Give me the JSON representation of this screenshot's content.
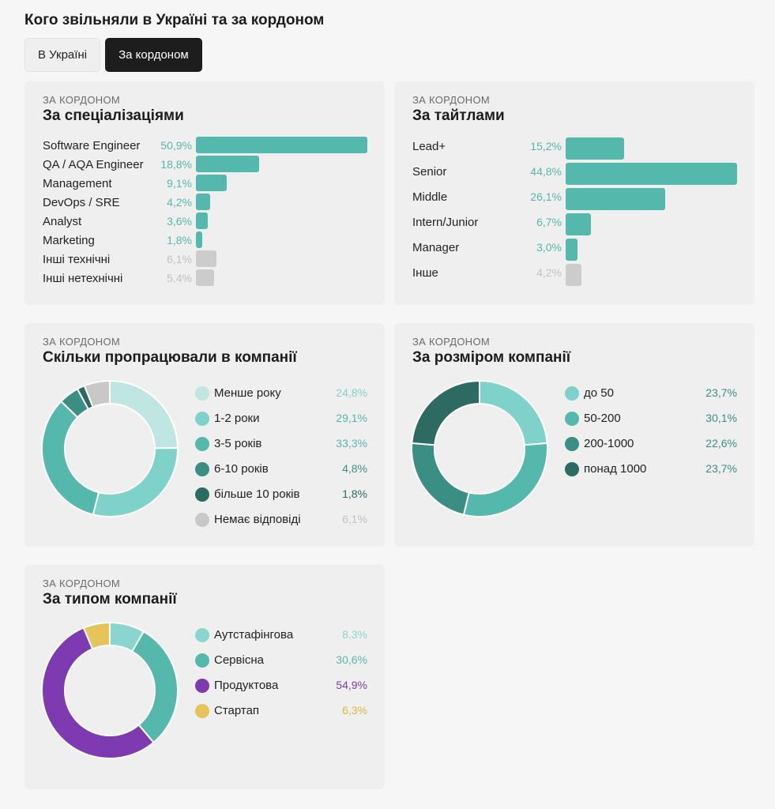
{
  "page": {
    "title": "Кого звільняли в Україні та за кордоном"
  },
  "tabs": [
    {
      "label": "В Україні",
      "active": false
    },
    {
      "label": "За кордоном",
      "active": true
    }
  ],
  "colors": {
    "teal": "#54b8ad",
    "gray": "#cccccc",
    "gray_text": "#c2c2c2",
    "exp": [
      "#bfe6e3",
      "#7fd2ca",
      "#54b8ad",
      "#3b8e84",
      "#2d6a62",
      "#c8c8c8"
    ],
    "size": [
      "#7fd2ca",
      "#54b8ad",
      "#3b8e84",
      "#2d6a62"
    ],
    "type": [
      "#8ad6cf",
      "#54b8ad",
      "#7e3bb1",
      "#e6c45a"
    ]
  },
  "chart_data": [
    {
      "type": "bar",
      "kicker": "ЗА КОРДОНОМ",
      "title": "За спеціалізаціями",
      "categories": [
        "Software Engineer",
        "QA / AQA Engineer",
        "Management",
        "DevOps / SRE",
        "Analyst",
        "Marketing",
        "Інші технічні",
        "Інші нетехнічні"
      ],
      "values": [
        50.9,
        18.8,
        9.1,
        4.2,
        3.6,
        1.8,
        6.1,
        5.4
      ],
      "labels": [
        "50,9%",
        "18,8%",
        "9,1%",
        "4,2%",
        "3,6%",
        "1,8%",
        "6,1%",
        "5,4%"
      ],
      "muted": [
        false,
        false,
        false,
        false,
        false,
        false,
        true,
        true
      ]
    },
    {
      "type": "bar",
      "kicker": "ЗА КОРДОНОМ",
      "title": "За тайтлами",
      "categories": [
        "Lead+",
        "Senior",
        "Middle",
        "Intern/Junior",
        "Manager",
        "Інше"
      ],
      "values": [
        15.2,
        44.8,
        26.1,
        6.7,
        3.0,
        4.2
      ],
      "labels": [
        "15,2%",
        "44,8%",
        "26,1%",
        "6,7%",
        "3,0%",
        "4,2%"
      ],
      "muted": [
        false,
        false,
        false,
        false,
        false,
        true
      ]
    },
    {
      "type": "pie",
      "kicker": "ЗА КОРДОНОМ",
      "title": "Скільки пропрацювали в компанії",
      "categories": [
        "Менше року",
        "1-2 роки",
        "3-5 років",
        "6-10 років",
        "більше 10 років",
        "Немає відповіді"
      ],
      "values": [
        24.8,
        29.1,
        33.3,
        4.8,
        1.8,
        6.1
      ],
      "labels": [
        "24,8%",
        "29,1%",
        "33,3%",
        "4,8%",
        "1,8%",
        "6,1%"
      ]
    },
    {
      "type": "pie",
      "kicker": "ЗА КОРДОНОМ",
      "title": "За розміром компанії",
      "categories": [
        "до 50",
        "50-200",
        "200-1000",
        "понад 1000"
      ],
      "values": [
        23.7,
        30.1,
        22.6,
        23.7
      ],
      "labels": [
        "23,7%",
        "30,1%",
        "22,6%",
        "23,7%"
      ]
    },
    {
      "type": "pie",
      "kicker": "ЗА КОРДОНОМ",
      "title": "За типом компанії",
      "categories": [
        "Аутстафінгова",
        "Сервісна",
        "Продуктова",
        "Стартап"
      ],
      "values": [
        8.3,
        30.6,
        54.9,
        6.3
      ],
      "labels": [
        "8,3%",
        "30,6%",
        "54,9%",
        "6,3%"
      ]
    }
  ]
}
